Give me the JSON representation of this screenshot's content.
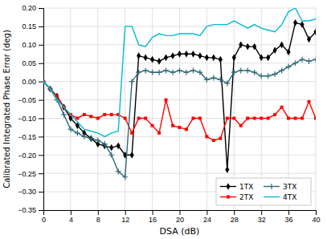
{
  "chart_data": {
    "type": "line",
    "xlabel": "DSA (dB)",
    "ylabel": "Calibrated Integrated Phase Error (deg)",
    "xlim": [
      0,
      40
    ],
    "ylim": [
      -0.35,
      0.2
    ],
    "xticks": [
      0,
      4,
      8,
      12,
      16,
      20,
      24,
      28,
      32,
      36,
      40
    ],
    "yticks": [
      {
        "value": -0.35,
        "label": "−0.35"
      },
      {
        "value": -0.3,
        "label": "−0.30"
      },
      {
        "value": -0.25,
        "label": "−0.25"
      },
      {
        "value": -0.2,
        "label": "−0.20"
      },
      {
        "value": -0.15,
        "label": "−0.15"
      },
      {
        "value": -0.1,
        "label": "−0.10"
      },
      {
        "value": -0.05,
        "label": "−0.05"
      },
      {
        "value": 0.0,
        "label": "0.00"
      },
      0.05,
      {
        "value": 0.1,
        "label": "0.10"
      },
      0.15,
      {
        "value": 0.2,
        "label": "0.20"
      }
    ],
    "grid": true,
    "legend": "lower right",
    "x": [
      0,
      1,
      2,
      3,
      4,
      5,
      6,
      7,
      8,
      9,
      10,
      11,
      12,
      13,
      14,
      15,
      16,
      17,
      18,
      19,
      20,
      21,
      22,
      23,
      24,
      25,
      26,
      27,
      28,
      29,
      30,
      31,
      32,
      33,
      34,
      35,
      36,
      37,
      38,
      39,
      40
    ],
    "series": [
      {
        "name": "1TX",
        "color": "#000000",
        "marker": "diamond",
        "values": [
          0.0,
          -0.02,
          -0.04,
          -0.07,
          -0.1,
          -0.12,
          -0.14,
          -0.155,
          -0.17,
          -0.175,
          -0.18,
          -0.175,
          -0.2,
          -0.2,
          0.07,
          0.065,
          0.06,
          0.055,
          0.065,
          0.07,
          0.075,
          0.075,
          0.075,
          0.07,
          0.065,
          0.065,
          0.06,
          -0.24,
          0.065,
          0.1,
          0.095,
          0.095,
          0.065,
          0.065,
          0.085,
          0.1,
          0.08,
          0.16,
          0.155,
          0.115,
          0.135
        ]
      },
      {
        "name": "2TX",
        "color": "#ff0000",
        "marker": "square",
        "values": [
          0.0,
          -0.02,
          -0.04,
          -0.07,
          -0.09,
          -0.1,
          -0.09,
          -0.095,
          -0.1,
          -0.09,
          -0.09,
          -0.09,
          -0.1,
          -0.14,
          -0.1,
          -0.1,
          -0.12,
          -0.14,
          -0.05,
          -0.12,
          -0.125,
          -0.13,
          -0.1,
          -0.1,
          -0.15,
          -0.16,
          -0.155,
          -0.1,
          -0.1,
          -0.12,
          -0.1,
          -0.1,
          -0.1,
          -0.1,
          -0.09,
          -0.07,
          -0.1,
          -0.1,
          -0.1,
          -0.055,
          -0.1
        ]
      },
      {
        "name": "3TX",
        "color": "#2e6b78",
        "marker": "plus",
        "values": [
          0.0,
          -0.02,
          -0.05,
          -0.09,
          -0.13,
          -0.14,
          -0.15,
          -0.155,
          -0.16,
          -0.17,
          -0.2,
          -0.245,
          -0.26,
          0.0,
          0.025,
          0.03,
          0.025,
          0.025,
          0.03,
          0.025,
          0.03,
          0.025,
          0.03,
          0.025,
          0.005,
          0.01,
          0.005,
          -0.005,
          0.025,
          0.03,
          0.03,
          0.025,
          0.015,
          0.015,
          0.02,
          0.03,
          0.04,
          0.05,
          0.06,
          0.055,
          0.06
        ]
      },
      {
        "name": "4TX",
        "color": "#00bcd4",
        "values": [
          0.0,
          -0.02,
          -0.05,
          -0.07,
          -0.09,
          -0.11,
          -0.13,
          -0.135,
          -0.14,
          -0.15,
          -0.14,
          -0.135,
          0.15,
          0.15,
          0.1,
          0.095,
          0.12,
          0.13,
          0.125,
          0.125,
          0.13,
          0.13,
          0.13,
          0.125,
          0.15,
          0.155,
          0.155,
          0.155,
          0.165,
          0.155,
          0.145,
          0.155,
          0.145,
          0.14,
          0.135,
          0.155,
          0.19,
          0.2,
          0.165,
          0.165,
          0.17
        ]
      }
    ]
  }
}
